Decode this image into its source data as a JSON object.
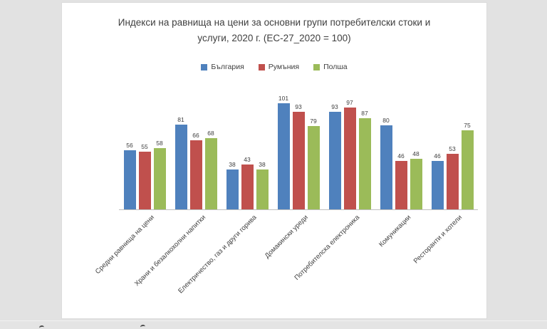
{
  "header": {
    "title_line1": "Индекси на равнища на цени за основни групи потребителски стоки и",
    "title_line2": "услуги, 2020 г. (ЕС-27_2020 = 100)"
  },
  "chart_data": {
    "type": "bar",
    "title": "Индекси на равнища на цени за основни групи потребителски стоки и услуги, 2020 г. (ЕС-27_2020 = 100)",
    "categories": [
      "Средни равнища на цени",
      "Храни и безалкохолни напитки",
      "Електричество, газ и други горива",
      "Домакински уреди",
      "Потребителска електроника",
      "Комуникации",
      "Ресторанти и хотели"
    ],
    "series": [
      {
        "name": "България",
        "color": "#4F81BD",
        "values": [
          56,
          81,
          38,
          101,
          93,
          80,
          46
        ]
      },
      {
        "name": "Румъния",
        "color": "#C0504D",
        "values": [
          55,
          66,
          43,
          93,
          97,
          46,
          53
        ]
      },
      {
        "name": "Полша",
        "color": "#9BBB59",
        "values": [
          58,
          68,
          38,
          79,
          87,
          48,
          75
        ]
      }
    ],
    "ylim": [
      0,
      110
    ],
    "grid": false,
    "legend_position": "top",
    "data_labels": true,
    "axis_color": "#BFBFBF",
    "label_color": "#404040",
    "background": "#FFFFFF",
    "page_background": "#E2E2E2"
  }
}
